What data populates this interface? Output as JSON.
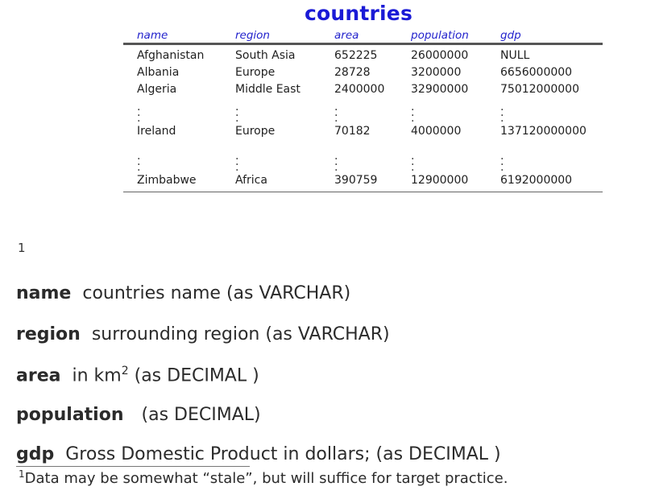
{
  "title": "countries",
  "table": {
    "headers": [
      "name",
      "region",
      "area",
      "population",
      "gdp"
    ],
    "rows": [
      [
        "Afghanistan",
        "South Asia",
        "652225",
        "26000000",
        "NULL"
      ],
      [
        "Albania",
        "Europe",
        "28728",
        "3200000",
        "6656000000"
      ],
      [
        "Algeria",
        "Middle East",
        "2400000",
        "32900000",
        "75012000000"
      ],
      [
        "Ireland",
        "Europe",
        "70182",
        "4000000",
        "137120000000"
      ],
      [
        "Zimbabwe",
        "Africa",
        "390759",
        "12900000",
        "6192000000"
      ]
    ]
  },
  "footnote_marker": "1",
  "definitions": [
    {
      "term": "name",
      "text": "countries name (as VARCHAR)"
    },
    {
      "term": "region",
      "text": "surrounding region (as VARCHAR)"
    },
    {
      "term": "area",
      "text_before": "in km",
      "sup": "2",
      "text_after": " (as DECIMAL )"
    },
    {
      "term": "population",
      "text": "(as DECIMAL)"
    },
    {
      "term": "gdp",
      "text": "Gross Domestic Product in dollars; (as DECIMAL )"
    }
  ],
  "footnote": {
    "marker": "1",
    "text": "Data may be somewhat “stale”, but will suffice for target practice."
  }
}
